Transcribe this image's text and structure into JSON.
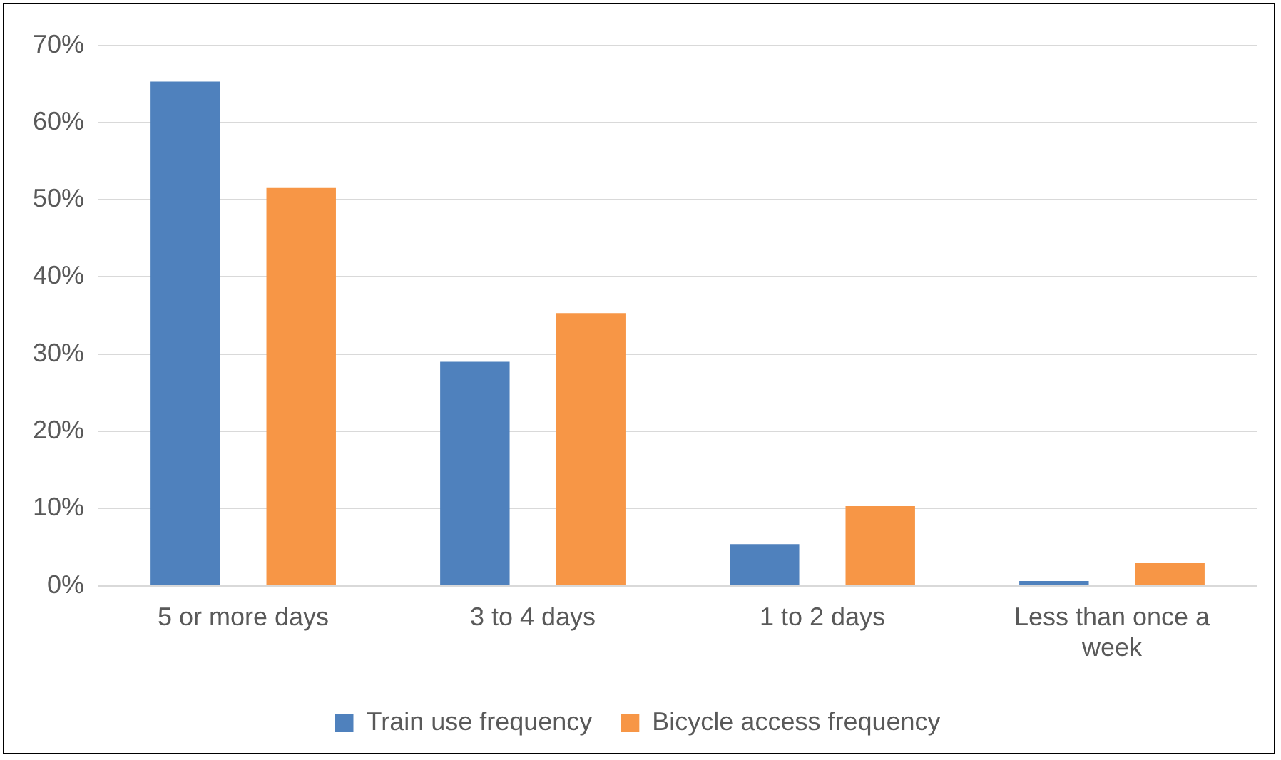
{
  "chart_data": {
    "type": "bar",
    "categories": [
      "5 or more days",
      "3 to 4 days",
      "1 to 2 days",
      "Less than once a week"
    ],
    "series": [
      {
        "name": "Train use frequency",
        "color": "#4f81bd",
        "values": [
          65.3,
          29,
          5.4,
          0.6
        ]
      },
      {
        "name": "Bicycle access frequency",
        "color": "#f79646",
        "values": [
          51.6,
          35.3,
          10.3,
          3
        ]
      }
    ],
    "ylim": [
      0,
      70
    ],
    "yticks": [
      {
        "value": 0,
        "label": "0%"
      },
      {
        "value": 10,
        "label": "10%"
      },
      {
        "value": 20,
        "label": "20%"
      },
      {
        "value": 30,
        "label": "30%"
      },
      {
        "value": 40,
        "label": "40%"
      },
      {
        "value": 50,
        "label": "50%"
      },
      {
        "value": 60,
        "label": "60%"
      },
      {
        "value": 70,
        "label": "70%"
      }
    ],
    "grid": "y",
    "legend": "bottom"
  }
}
